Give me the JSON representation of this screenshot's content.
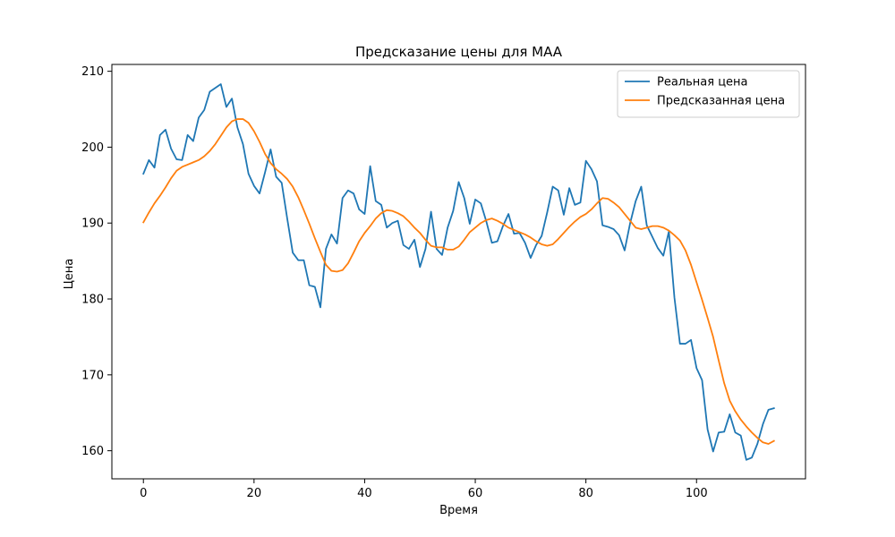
{
  "chart_data": {
    "type": "line",
    "title": "Предсказание цены для MAA",
    "xlabel": "Время",
    "ylabel": "Цена",
    "xlim": [
      -5.7,
      119.7
    ],
    "ylim": [
      156.3,
      210.9
    ],
    "xticks": [
      0,
      20,
      40,
      60,
      80,
      100
    ],
    "yticks": [
      160,
      170,
      180,
      190,
      200,
      210
    ],
    "grid": false,
    "legend": "upper-right",
    "series": [
      {
        "name": "Реальная цена",
        "color": "#1f77b4",
        "values": [
          196.5,
          198.3,
          197.3,
          201.6,
          202.3,
          199.8,
          198.4,
          198.3,
          201.6,
          200.8,
          203.9,
          204.9,
          207.3,
          207.8,
          208.3,
          205.3,
          206.4,
          202.6,
          200.4,
          196.5,
          194.9,
          193.9,
          196.7,
          199.7,
          196.1,
          195.3,
          190.6,
          186.1,
          185.1,
          185.1,
          181.8,
          181.6,
          178.9,
          186.6,
          188.5,
          187.3,
          193.3,
          194.3,
          193.9,
          191.8,
          191.2,
          197.5,
          192.9,
          192.4,
          189.4,
          190.0,
          190.3,
          187.1,
          186.6,
          187.8,
          184.2,
          186.6,
          191.5,
          186.6,
          185.8,
          189.4,
          191.6,
          195.4,
          193.3,
          189.9,
          193.1,
          192.6,
          190.2,
          187.4,
          187.6,
          189.6,
          191.2,
          188.6,
          188.7,
          187.4,
          185.4,
          187.1,
          188.3,
          191.4,
          194.8,
          194.3,
          191.1,
          194.6,
          192.4,
          192.7,
          198.2,
          197.1,
          195.5,
          189.7,
          189.5,
          189.2,
          188.4,
          186.4,
          190.0,
          192.9,
          194.8,
          189.7,
          188.2,
          186.7,
          185.7,
          188.9,
          180.2,
          174.1,
          174.1,
          174.6,
          170.9,
          169.3,
          162.8,
          159.9,
          162.4,
          162.5,
          164.8,
          162.4,
          162.0,
          158.8,
          159.1,
          160.9,
          163.5,
          165.4,
          165.6
        ]
      },
      {
        "name": "Предсказанная цена",
        "color": "#ff7f0e",
        "values": [
          190.1,
          191.4,
          192.6,
          193.6,
          194.7,
          195.9,
          196.9,
          197.4,
          197.7,
          198.0,
          198.3,
          198.8,
          199.5,
          200.4,
          201.5,
          202.6,
          203.4,
          203.7,
          203.7,
          203.2,
          202.1,
          200.7,
          199.1,
          197.9,
          197.1,
          196.5,
          195.8,
          194.8,
          193.4,
          191.7,
          189.9,
          188.0,
          186.2,
          184.5,
          183.7,
          183.6,
          183.8,
          184.7,
          186.1,
          187.6,
          188.7,
          189.6,
          190.6,
          191.3,
          191.7,
          191.6,
          191.3,
          190.9,
          190.2,
          189.4,
          188.7,
          187.8,
          187.0,
          186.8,
          186.8,
          186.5,
          186.5,
          186.9,
          187.8,
          188.8,
          189.4,
          190.0,
          190.4,
          190.6,
          190.3,
          189.9,
          189.4,
          189.1,
          188.8,
          188.5,
          188.1,
          187.6,
          187.2,
          187.0,
          187.2,
          187.9,
          188.7,
          189.5,
          190.2,
          190.8,
          191.2,
          191.8,
          192.6,
          193.3,
          193.2,
          192.7,
          192.1,
          191.2,
          190.3,
          189.4,
          189.2,
          189.4,
          189.6,
          189.6,
          189.4,
          189.0,
          188.4,
          187.7,
          186.4,
          184.5,
          182.2,
          179.9,
          177.5,
          175.0,
          171.9,
          168.9,
          166.6,
          165.2,
          164.1,
          163.2,
          162.4,
          161.7,
          161.1,
          160.9,
          161.3
        ]
      }
    ]
  }
}
